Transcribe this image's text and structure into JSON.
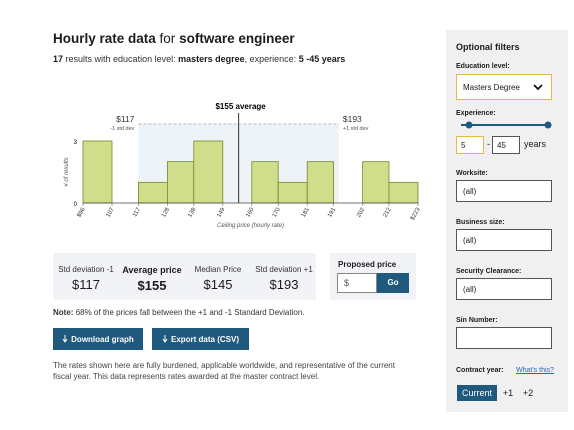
{
  "header": {
    "title": [
      "Hourly rate data",
      "for",
      "software engineer"
    ],
    "subtitle": [
      "17",
      "results with education level:",
      "masters degree",
      ", experience:",
      "5 -45 years"
    ]
  },
  "chart_data": {
    "type": "histogram",
    "bins": [
      {
        "value": 96,
        "label": "$96"
      },
      107,
      117,
      128,
      138,
      149,
      160,
      170,
      181,
      191,
      202,
      212,
      {
        "value": 223,
        "label": "$223"
      }
    ],
    "values": [
      3,
      0,
      1,
      2,
      3,
      0,
      2,
      1,
      2,
      0,
      2,
      1
    ],
    "color": "#d0de8c",
    "xlim": [
      96,
      223
    ],
    "ylim": [
      0,
      3
    ],
    "yticks": [
      0,
      3
    ],
    "ylabel": "# of results",
    "xlabel": "Ceiling price (hourly rate)",
    "annotations": {
      "average": {
        "value": 155,
        "label": "$155 average"
      },
      "lower": {
        "value": 117,
        "label": "$117",
        "note": "-1 std dev"
      },
      "upper": {
        "value": 193,
        "label": "$193",
        "note": "+1 std dev"
      }
    }
  },
  "stats": [
    {
      "label": "Std deviation -1",
      "value": "$117"
    },
    {
      "label": "Average price",
      "value": "$155"
    },
    {
      "label": "Median Price",
      "value": "$145"
    },
    {
      "label": "Std deviation +1",
      "value": "$193"
    }
  ],
  "proposed": {
    "label": "Proposed price",
    "placeholder": "$",
    "button": "Go"
  },
  "note": {
    "lead": "Note:",
    "text": "68% of the prices fall between the +1 and -1 Standard Deviation."
  },
  "buttons": [
    "Download graph",
    "Export data (CSV)"
  ],
  "disclaimer": "The rates shown here are fully burdened, applicable worldwide, and representative of the current fiscal year. This data represents rates awarded at the master contract level.",
  "sidebar": {
    "title": "Optional filters",
    "education": {
      "label": "Education level:",
      "value": "Masters Degree"
    },
    "experience": {
      "label": "Experience:",
      "min": 5,
      "max": 45,
      "unit": "years"
    },
    "fields": [
      {
        "label": "Worksite:",
        "value": "(all)"
      },
      {
        "label": "Business size:",
        "value": "(all)"
      },
      {
        "label": "Security Clearance:",
        "value": "(all)"
      },
      {
        "label": "Sin Number:"
      }
    ],
    "contract": {
      "label": "Contract year:",
      "link": "What's this?",
      "options": [
        "Current",
        "+1",
        "+2"
      ]
    }
  }
}
